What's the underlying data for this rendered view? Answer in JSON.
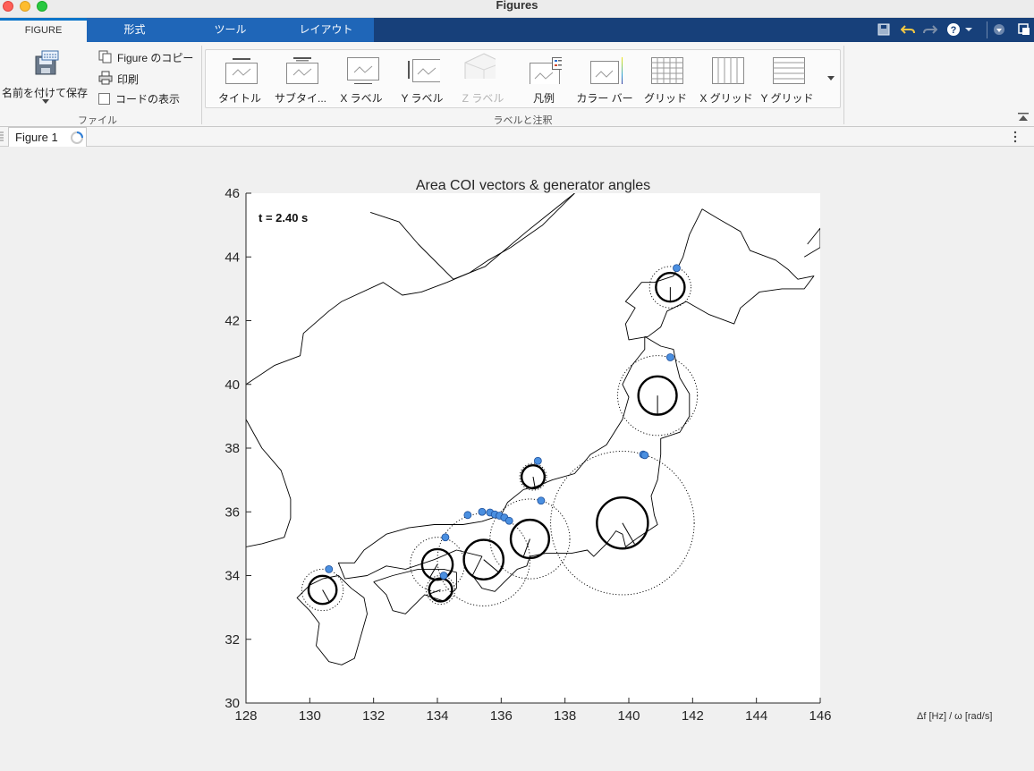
{
  "window": {
    "title": "Figures"
  },
  "tabs": [
    {
      "label": "FIGURE"
    },
    {
      "label": "形式"
    },
    {
      "label": "ツール"
    },
    {
      "label": "レイアウト"
    }
  ],
  "ribbon": {
    "file": {
      "save_as": "名前を付けて保存",
      "copy_figure": "Figure のコピー",
      "print": "印刷",
      "show_code": "コードの表示",
      "group_label": "ファイル"
    },
    "labels_group": {
      "group_label": "ラベルと注釈",
      "items": [
        {
          "label": "タイトル",
          "icon": "title-icon",
          "enabled": true
        },
        {
          "label": "サブタイ...",
          "icon": "subtitle-icon",
          "enabled": true
        },
        {
          "label": "X ラベル",
          "icon": "xlabel-icon",
          "enabled": true
        },
        {
          "label": "Y ラベル",
          "icon": "ylabel-icon",
          "enabled": true
        },
        {
          "label": "Z ラベル",
          "icon": "zlabel-icon",
          "enabled": false
        },
        {
          "label": "凡例",
          "icon": "legend-icon",
          "enabled": true
        },
        {
          "label": "カラー バー",
          "icon": "colorbar-icon",
          "enabled": true
        },
        {
          "label": "グリッド",
          "icon": "grid-icon",
          "enabled": true
        },
        {
          "label": "X グリッド",
          "icon": "xgrid-icon",
          "enabled": true
        },
        {
          "label": "Y グリッド",
          "icon": "ygrid-icon",
          "enabled": true
        }
      ]
    }
  },
  "document_tab": {
    "label": "Figure 1"
  },
  "side_note": "Δf [Hz] / ω [rad/s]",
  "colors": {
    "ribbon_tab_bg": "#17407a",
    "active_tab_accent": "#0b74c9",
    "marker_fill": "#4a8fe0",
    "marker_edge": "#1e4f9a"
  },
  "chart_data": {
    "type": "scatter",
    "title": "Area COI vectors & generator angles",
    "annotation": "t = 2.40 s",
    "xlabel": "",
    "ylabel": "",
    "xlim": [
      128,
      146
    ],
    "ylim": [
      30,
      46
    ],
    "xticks": [
      128,
      130,
      132,
      134,
      136,
      138,
      140,
      142,
      144,
      146
    ],
    "yticks": [
      30,
      32,
      34,
      36,
      38,
      40,
      42,
      44,
      46
    ],
    "grid": false,
    "legend": "none",
    "areas": [
      {
        "x": 141.3,
        "y": 43.05,
        "r": 0.45,
        "r_outer": 0.65,
        "angle_deg": 270
      },
      {
        "x": 140.9,
        "y": 39.65,
        "r": 0.6,
        "r_outer": 1.25,
        "angle_deg": 270
      },
      {
        "x": 139.8,
        "y": 35.65,
        "r": 0.8,
        "r_outer": 2.25,
        "angle_deg": 300
      },
      {
        "x": 136.9,
        "y": 35.15,
        "r": 0.6,
        "r_outer": 1.25,
        "angle_deg": 250
      },
      {
        "x": 135.45,
        "y": 34.5,
        "r": 0.62,
        "r_outer": 1.45,
        "angle_deg": 320
      },
      {
        "x": 134.0,
        "y": 34.35,
        "r": 0.48,
        "r_outer": 0.85,
        "angle_deg": 240
      },
      {
        "x": 134.1,
        "y": 33.55,
        "r": 0.36,
        "r_outer": 0.45,
        "angle_deg": 200
      },
      {
        "x": 137.0,
        "y": 37.1,
        "r": 0.36,
        "r_outer": 0.42,
        "angle_deg": 280
      },
      {
        "x": 130.4,
        "y": 33.55,
        "r": 0.44,
        "r_outer": 0.65,
        "angle_deg": 300
      }
    ],
    "generators": [
      {
        "x": 141.5,
        "y": 43.65
      },
      {
        "x": 141.3,
        "y": 40.85
      },
      {
        "x": 140.45,
        "y": 37.8
      },
      {
        "x": 140.5,
        "y": 37.78
      },
      {
        "x": 137.15,
        "y": 37.6
      },
      {
        "x": 137.25,
        "y": 36.35
      },
      {
        "x": 134.95,
        "y": 35.9
      },
      {
        "x": 135.4,
        "y": 36.0
      },
      {
        "x": 135.65,
        "y": 35.98
      },
      {
        "x": 135.8,
        "y": 35.92
      },
      {
        "x": 135.95,
        "y": 35.88
      },
      {
        "x": 136.1,
        "y": 35.82
      },
      {
        "x": 136.25,
        "y": 35.72
      },
      {
        "x": 134.25,
        "y": 35.2
      },
      {
        "x": 134.2,
        "y": 34.0
      },
      {
        "x": 130.6,
        "y": 34.2
      }
    ],
    "coastlines": [
      [
        [
          141.9,
          44.7
        ],
        [
          142.3,
          45.5
        ],
        [
          142.8,
          45.2
        ],
        [
          143.5,
          44.8
        ],
        [
          143.8,
          44.2
        ],
        [
          144.6,
          43.9
        ],
        [
          145.0,
          43.6
        ],
        [
          145.3,
          43.3
        ],
        [
          145.8,
          43.4
        ],
        [
          145.5,
          43.0
        ],
        [
          144.8,
          43.0
        ],
        [
          144.1,
          42.9
        ],
        [
          143.5,
          42.4
        ],
        [
          143.3,
          41.9
        ],
        [
          142.5,
          42.2
        ],
        [
          141.8,
          42.6
        ],
        [
          141.2,
          42.3
        ],
        [
          141.0,
          41.8
        ],
        [
          140.6,
          41.5
        ],
        [
          140.0,
          41.4
        ],
        [
          139.9,
          41.9
        ],
        [
          140.2,
          42.4
        ],
        [
          139.9,
          42.6
        ],
        [
          140.4,
          43.2
        ],
        [
          140.8,
          43.2
        ],
        [
          141.4,
          43.4
        ],
        [
          141.7,
          44.0
        ],
        [
          141.9,
          44.7
        ]
      ],
      [
        [
          145.5,
          44.0
        ],
        [
          146.0,
          44.3
        ],
        [
          146.0,
          44.9
        ],
        [
          145.6,
          44.4
        ]
      ],
      [
        [
          140.5,
          41.5
        ],
        [
          141.0,
          41.2
        ],
        [
          141.4,
          41.1
        ],
        [
          141.5,
          40.6
        ],
        [
          141.6,
          40.2
        ],
        [
          141.9,
          39.7
        ],
        [
          141.9,
          39.0
        ],
        [
          141.6,
          38.5
        ],
        [
          141.0,
          38.3
        ],
        [
          141.0,
          37.8
        ],
        [
          140.9,
          37.0
        ],
        [
          140.7,
          36.5
        ],
        [
          140.8,
          35.9
        ],
        [
          140.9,
          35.6
        ],
        [
          140.3,
          35.2
        ],
        [
          139.9,
          34.9
        ],
        [
          139.8,
          35.3
        ],
        [
          139.6,
          35.4
        ],
        [
          139.3,
          35.0
        ],
        [
          138.9,
          34.6
        ],
        [
          138.7,
          34.8
        ],
        [
          138.2,
          34.7
        ],
        [
          137.4,
          34.7
        ],
        [
          136.9,
          34.6
        ],
        [
          136.8,
          34.3
        ],
        [
          136.5,
          34.2
        ],
        [
          135.8,
          33.5
        ],
        [
          135.4,
          33.6
        ],
        [
          135.1,
          34.0
        ],
        [
          135.4,
          34.6
        ],
        [
          134.6,
          34.8
        ],
        [
          133.9,
          34.5
        ],
        [
          133.0,
          34.2
        ],
        [
          132.4,
          34.3
        ],
        [
          131.8,
          34.0
        ],
        [
          131.1,
          33.9
        ],
        [
          130.9,
          34.4
        ],
        [
          131.4,
          34.4
        ],
        [
          131.7,
          34.8
        ],
        [
          132.4,
          35.3
        ],
        [
          133.1,
          35.5
        ],
        [
          133.9,
          35.6
        ],
        [
          134.8,
          35.6
        ],
        [
          135.4,
          35.7
        ],
        [
          136.0,
          35.9
        ],
        [
          136.2,
          36.3
        ],
        [
          136.7,
          36.7
        ],
        [
          137.1,
          36.8
        ],
        [
          137.6,
          37.0
        ],
        [
          138.3,
          37.2
        ],
        [
          138.8,
          37.8
        ],
        [
          139.3,
          38.1
        ],
        [
          139.8,
          38.9
        ],
        [
          140.0,
          39.6
        ],
        [
          139.8,
          40.0
        ],
        [
          140.1,
          40.6
        ],
        [
          140.5,
          41.1
        ],
        [
          140.5,
          41.5
        ]
      ],
      [
        [
          130.9,
          34.0
        ],
        [
          131.3,
          33.6
        ],
        [
          131.7,
          33.3
        ],
        [
          131.8,
          32.8
        ],
        [
          131.4,
          31.4
        ],
        [
          131.0,
          31.2
        ],
        [
          130.6,
          31.3
        ],
        [
          130.2,
          31.8
        ],
        [
          130.3,
          32.5
        ],
        [
          130.0,
          32.9
        ],
        [
          129.6,
          33.3
        ],
        [
          130.0,
          33.7
        ],
        [
          130.4,
          33.9
        ],
        [
          130.9,
          34.0
        ]
      ],
      [
        [
          132.0,
          33.8
        ],
        [
          132.6,
          34.0
        ],
        [
          133.4,
          34.2
        ],
        [
          134.2,
          34.2
        ],
        [
          134.6,
          34.1
        ],
        [
          134.6,
          33.6
        ],
        [
          134.2,
          33.2
        ],
        [
          133.6,
          33.4
        ],
        [
          133.0,
          32.8
        ],
        [
          132.6,
          32.9
        ],
        [
          132.4,
          33.4
        ],
        [
          132.0,
          33.8
        ]
      ],
      [
        [
          131.9,
          45.4
        ],
        [
          132.8,
          45.1
        ],
        [
          133.4,
          44.4
        ],
        [
          134.5,
          43.3
        ],
        [
          135.5,
          43.7
        ],
        [
          136.8,
          44.8
        ],
        [
          138.3,
          46.0
        ]
      ],
      [
        [
          128.0,
          40.0
        ],
        [
          128.9,
          40.6
        ],
        [
          129.7,
          40.9
        ],
        [
          129.8,
          41.6
        ],
        [
          130.6,
          42.3
        ],
        [
          131.0,
          42.6
        ],
        [
          132.3,
          43.2
        ],
        [
          132.9,
          42.8
        ],
        [
          133.5,
          42.9
        ],
        [
          134.3,
          43.2
        ],
        [
          135.0,
          43.5
        ],
        [
          135.6,
          43.9
        ],
        [
          136.3,
          44.3
        ],
        [
          137.3,
          45.0
        ],
        [
          138.2,
          45.9
        ],
        [
          138.3,
          46.0
        ]
      ],
      [
        [
          128.0,
          38.9
        ],
        [
          128.5,
          38.0
        ],
        [
          129.1,
          37.3
        ],
        [
          129.4,
          36.4
        ],
        [
          129.4,
          35.8
        ],
        [
          129.2,
          35.2
        ],
        [
          128.5,
          35.0
        ],
        [
          128.0,
          34.9
        ]
      ]
    ]
  }
}
